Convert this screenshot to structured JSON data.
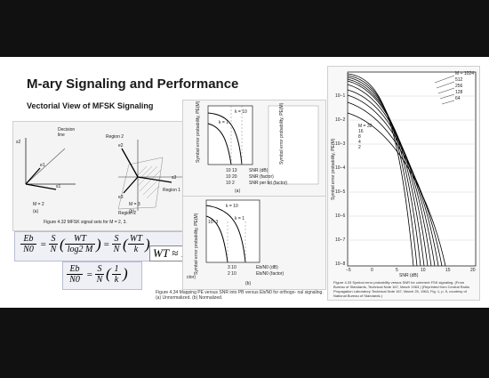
{
  "slide": {
    "title": "M-ary Signaling and Performance",
    "subtitle": "Vectorial View of MFSK Signaling"
  },
  "left_figure": {
    "labels": {
      "decision_line": "Decision\nline",
      "region2_a": "Region 2",
      "region1": "Region 1",
      "region2_b": "Region 2",
      "m2": "M = 2",
      "m3": "M = 3",
      "part_a": "(a)",
      "part_b": "(b)",
      "s1": "s1",
      "s2": "s2",
      "s3": "s3",
      "e1": "e1",
      "e2": "e2",
      "e3": "e3"
    },
    "caption": "Figure 4.32   MFSK signal sets for M = 2, 3."
  },
  "formulas": {
    "eq1_lhs_num": "Eb",
    "eq1_lhs_den": "N0",
    "eq1_s": "S",
    "eq1_n": "N",
    "eq1_wt": "WT",
    "eq1_log": "log2 M",
    "eq1_k": "k",
    "wt_approx": "WT ≈ 1",
    "eq2_lhs_num": "Eb",
    "eq2_lhs_den": "N0",
    "eq2_s": "S",
    "eq2_n": "N",
    "eq2_one": "1",
    "eq2_k": "k"
  },
  "mid_figure": {
    "ylabel_top": "Symbol error probability, PE(M)",
    "ylabel_right": "Symbol error probability, PE(M)",
    "k10": "k = 10",
    "k1": "k = 1",
    "k1b": "k = 1",
    "tick_1e3": "10−3",
    "row1": "10  13",
    "row1_label": "SNR (dB)",
    "row2": "10  20",
    "row2_label": "SNR (factor)",
    "row3": "10  2",
    "row3_label": "SNR per bit (factor)",
    "part_a": "(a)",
    "bot_row1": "3     10",
    "bot_row1_label": "Eb/N0 (dB)",
    "bot_row2": "2     10",
    "bot_row2_label": "Eb/N0 (factor)",
    "part_b": "(b)",
    "bot_left_label": "ctor)",
    "caption": "Figure 4.34   Mapping PE versus SNR into PB versus Eb/N0 for orthogo- nal signaling. (a) Unnormalized. (b) Normalized."
  },
  "right_figure": {
    "ylabel": "Symbol error probability, PE(M)",
    "xlabel": "SNR (dB)",
    "legend_m": [
      "M = 1024",
      "512",
      "256",
      "128",
      "64"
    ],
    "legend_lower": [
      "M = 32",
      "16",
      "8",
      "4",
      "2"
    ],
    "yticks": [
      "10−1",
      "10−2",
      "10−3",
      "10−4",
      "10−5",
      "10−6",
      "10−7",
      "10−8"
    ],
    "xticks": [
      "−5",
      "0",
      "5",
      "10",
      "15",
      "20"
    ],
    "caption": "Figure 4.33   Symbol error probability versus SNR for coherent FSK signaling. (From Bureau of Standards, Technical Note 167, March 1963.) (Reprinted from Central Radio Propagation Laboratory Technical Note 167, March 25, 1963, Fig. 1, p. 5, courtesy of National Bureau of Standards.)"
  }
}
